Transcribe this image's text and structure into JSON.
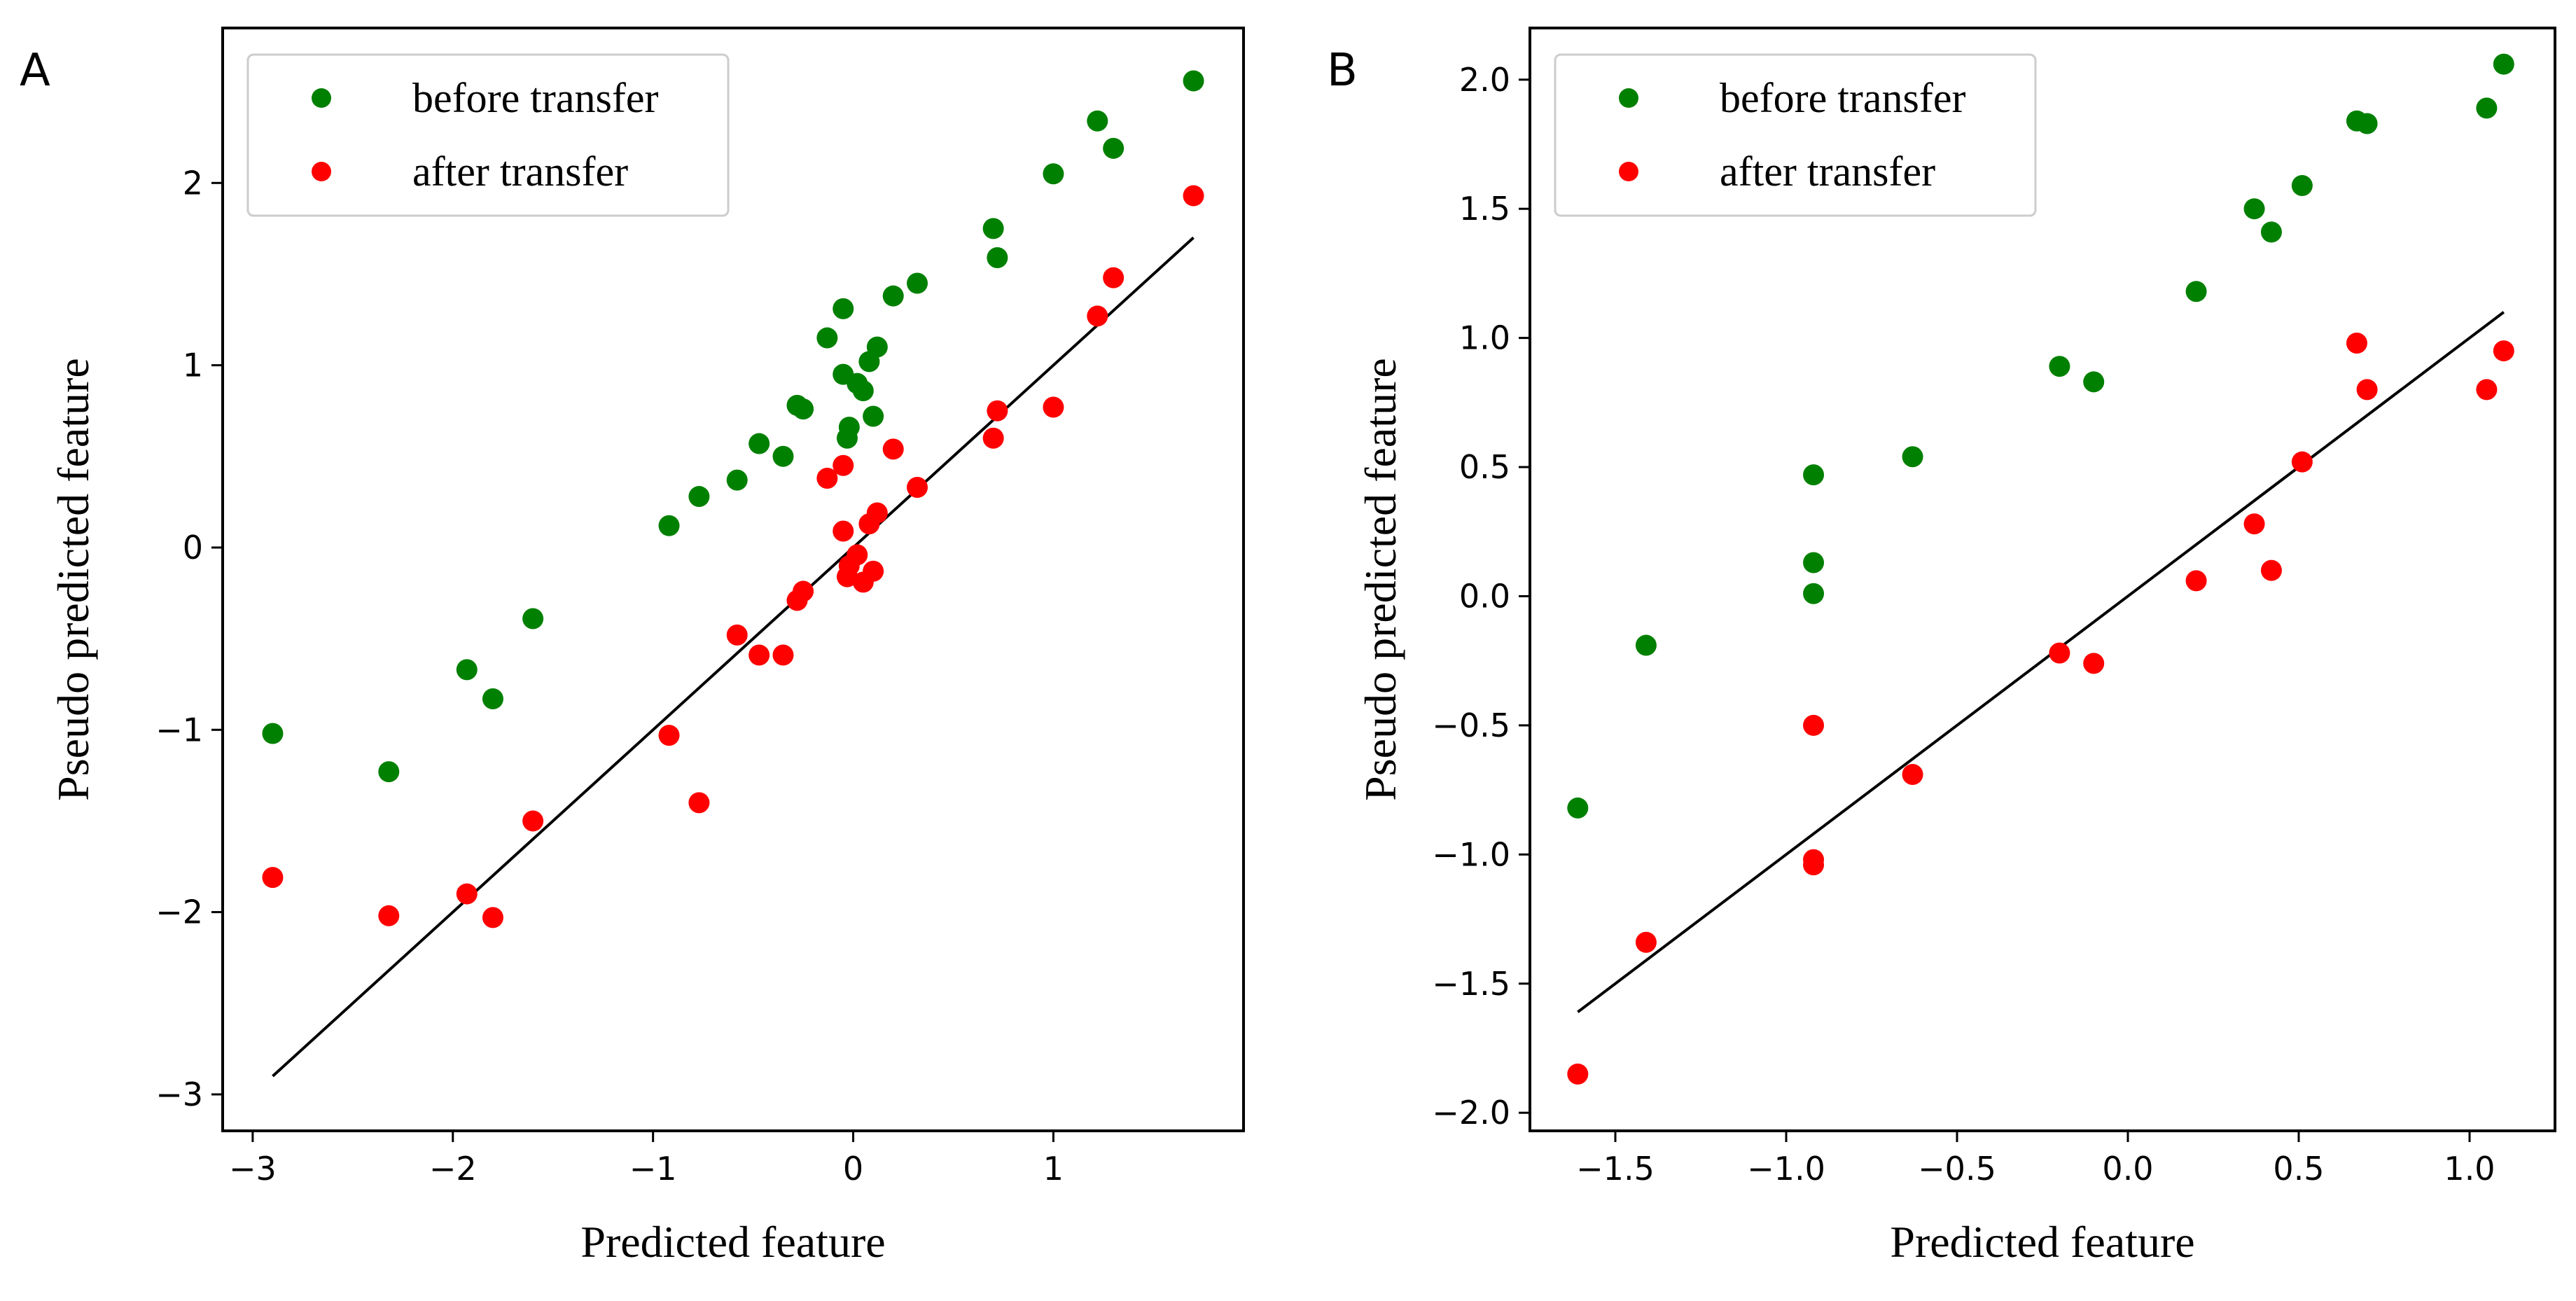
{
  "colors": {
    "before": "#008000",
    "after": "#ff0000",
    "fit_line": "#000000",
    "legend_border": "#cccccc"
  },
  "chart_data": [
    {
      "type": "scatter",
      "panel_label": "A",
      "xlabel": "Predicted feature",
      "ylabel": "Pseudo predicted feature",
      "xlim": [
        -3.15,
        1.95
      ],
      "ylim": [
        -3.2,
        2.85
      ],
      "xticks": [
        -3,
        -2,
        -1,
        0,
        1
      ],
      "yticks": [
        -3,
        -2,
        -1,
        0,
        1,
        2
      ],
      "xtick_labels": [
        "−3",
        "−2",
        "−1",
        "0",
        "1"
      ],
      "ytick_labels": [
        "−3",
        "−2",
        "−1",
        "0",
        "1",
        "2"
      ],
      "legend": {
        "position": "top-left",
        "entries": [
          "before transfer",
          "after transfer"
        ]
      },
      "fit_line": {
        "x": [
          -2.9,
          1.7
        ],
        "y": [
          -2.9,
          1.7
        ]
      },
      "series": [
        {
          "name": "before transfer",
          "points": [
            [
              -2.9,
              -1.02
            ],
            [
              -2.32,
              -1.23
            ],
            [
              -1.93,
              -0.67
            ],
            [
              -1.8,
              -0.83
            ],
            [
              -1.6,
              -0.39
            ],
            [
              -0.92,
              0.12
            ],
            [
              -0.77,
              0.28
            ],
            [
              -0.58,
              0.37
            ],
            [
              -0.47,
              0.57
            ],
            [
              -0.35,
              0.5
            ],
            [
              -0.28,
              0.78
            ],
            [
              -0.25,
              0.76
            ],
            [
              -0.13,
              1.15
            ],
            [
              -0.05,
              1.31
            ],
            [
              -0.05,
              0.95
            ],
            [
              -0.03,
              0.6
            ],
            [
              -0.02,
              0.66
            ],
            [
              0.02,
              0.9
            ],
            [
              0.05,
              0.86
            ],
            [
              0.08,
              1.02
            ],
            [
              0.1,
              0.72
            ],
            [
              0.12,
              1.1
            ],
            [
              0.2,
              1.38
            ],
            [
              0.32,
              1.45
            ],
            [
              0.7,
              1.75
            ],
            [
              0.72,
              1.59
            ],
            [
              1.0,
              2.05
            ],
            [
              1.22,
              2.34
            ],
            [
              1.3,
              2.19
            ],
            [
              1.7,
              2.56
            ]
          ]
        },
        {
          "name": "after transfer",
          "points": [
            [
              -2.9,
              -1.81
            ],
            [
              -2.32,
              -2.02
            ],
            [
              -1.93,
              -1.9
            ],
            [
              -1.8,
              -2.03
            ],
            [
              -1.6,
              -1.5
            ],
            [
              -0.92,
              -1.03
            ],
            [
              -0.77,
              -1.4
            ],
            [
              -0.58,
              -0.48
            ],
            [
              -0.47,
              -0.59
            ],
            [
              -0.35,
              -0.59
            ],
            [
              -0.28,
              -0.29
            ],
            [
              -0.25,
              -0.24
            ],
            [
              -0.13,
              0.38
            ],
            [
              -0.05,
              0.45
            ],
            [
              -0.05,
              0.09
            ],
            [
              -0.03,
              -0.16
            ],
            [
              -0.02,
              -0.1
            ],
            [
              0.02,
              -0.04
            ],
            [
              0.05,
              -0.19
            ],
            [
              0.08,
              0.13
            ],
            [
              0.1,
              -0.13
            ],
            [
              0.12,
              0.19
            ],
            [
              0.2,
              0.54
            ],
            [
              0.32,
              0.33
            ],
            [
              0.7,
              0.6
            ],
            [
              0.72,
              0.75
            ],
            [
              1.0,
              0.77
            ],
            [
              1.22,
              1.27
            ],
            [
              1.3,
              1.48
            ],
            [
              1.7,
              1.93
            ]
          ]
        }
      ]
    },
    {
      "type": "scatter",
      "panel_label": "B",
      "xlabel": "Predicted feature",
      "ylabel": "Pseudo predicted feature",
      "xlim": [
        -1.75,
        1.25
      ],
      "ylim": [
        -2.07,
        2.2
      ],
      "xticks": [
        -1.5,
        -1.0,
        -0.5,
        0.0,
        0.5,
        1.0
      ],
      "yticks": [
        -2.0,
        -1.5,
        -1.0,
        -0.5,
        0.0,
        0.5,
        1.0,
        1.5,
        2.0
      ],
      "xtick_labels": [
        "−1.5",
        "−1.0",
        "−0.5",
        "0.0",
        "0.5",
        "1.0"
      ],
      "ytick_labels": [
        "−2.0",
        "−1.5",
        "−1.0",
        "−0.5",
        "0.0",
        "0.5",
        "1.0",
        "1.5",
        "2.0"
      ],
      "legend": {
        "position": "top-left",
        "entries": [
          "before transfer",
          "after transfer"
        ]
      },
      "fit_line": {
        "x": [
          -1.61,
          1.1
        ],
        "y": [
          -1.61,
          1.1
        ]
      },
      "series": [
        {
          "name": "before transfer",
          "points": [
            [
              -1.61,
              -0.82
            ],
            [
              -1.41,
              -0.19
            ],
            [
              -0.92,
              0.47
            ],
            [
              -0.92,
              0.13
            ],
            [
              -0.92,
              0.01
            ],
            [
              -0.63,
              0.54
            ],
            [
              -0.2,
              0.89
            ],
            [
              -0.1,
              0.83
            ],
            [
              0.2,
              1.18
            ],
            [
              0.37,
              1.5
            ],
            [
              0.42,
              1.41
            ],
            [
              0.51,
              1.59
            ],
            [
              0.67,
              1.84
            ],
            [
              0.7,
              1.83
            ],
            [
              1.05,
              1.89
            ],
            [
              1.1,
              2.06
            ]
          ]
        },
        {
          "name": "after transfer",
          "points": [
            [
              -1.61,
              -1.85
            ],
            [
              -1.41,
              -1.34
            ],
            [
              -0.92,
              -0.5
            ],
            [
              -0.92,
              -1.02
            ],
            [
              -0.92,
              -1.04
            ],
            [
              -0.63,
              -0.69
            ],
            [
              -0.2,
              -0.22
            ],
            [
              -0.1,
              -0.26
            ],
            [
              0.2,
              0.06
            ],
            [
              0.37,
              0.28
            ],
            [
              0.42,
              0.1
            ],
            [
              0.51,
              0.52
            ],
            [
              0.67,
              0.98
            ],
            [
              0.7,
              0.8
            ],
            [
              1.05,
              0.8
            ],
            [
              1.1,
              0.95
            ]
          ]
        }
      ]
    }
  ]
}
